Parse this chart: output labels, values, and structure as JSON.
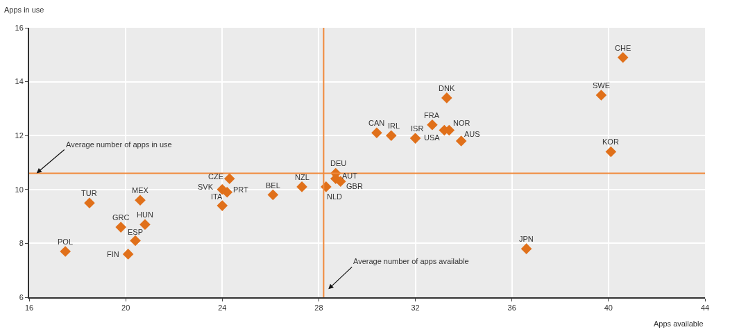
{
  "chart_data": {
    "type": "scatter",
    "xlabel": "Apps available",
    "ylabel": "Apps in use",
    "x": [
      17.5,
      18.5,
      19.8,
      20.6,
      20.8,
      20.4,
      20.1,
      24.3,
      24.0,
      24.2,
      24.0,
      26.1,
      27.3,
      28.3,
      28.7,
      28.7,
      28.9,
      30.4,
      31.0,
      32.0,
      32.7,
      33.2,
      33.4,
      33.9,
      33.3,
      39.7,
      40.6,
      40.1,
      36.6
    ],
    "series": [
      {
        "color": "#e0701a",
        "values": [
          7.7,
          9.5,
          8.6,
          9.6,
          8.7,
          8.1,
          7.6,
          10.4,
          10.0,
          9.9,
          9.4,
          9.8,
          10.1,
          10.1,
          10.6,
          10.4,
          10.3,
          12.1,
          12.0,
          11.9,
          12.4,
          12.2,
          12.2,
          11.8,
          13.4,
          13.5,
          14.9,
          11.4,
          7.8
        ]
      }
    ],
    "annotations": [
      {
        "text": "POL",
        "x": 17.5,
        "y": 7.7
      },
      {
        "text": "TUR",
        "x": 18.5,
        "y": 9.5
      },
      {
        "text": "GRC",
        "x": 19.8,
        "y": 8.6
      },
      {
        "text": "MEX",
        "x": 20.6,
        "y": 9.6
      },
      {
        "text": "HUN",
        "x": 20.8,
        "y": 8.7
      },
      {
        "text": "ESP",
        "x": 20.4,
        "y": 8.1
      },
      {
        "text": "FIN",
        "x": 20.1,
        "y": 7.6
      },
      {
        "text": "CZE",
        "x": 24.3,
        "y": 10.4
      },
      {
        "text": "SVK",
        "x": 24.0,
        "y": 10.0
      },
      {
        "text": "PRT",
        "x": 24.2,
        "y": 9.9
      },
      {
        "text": "ITA",
        "x": 24.0,
        "y": 9.4
      },
      {
        "text": "BEL",
        "x": 26.1,
        "y": 9.8
      },
      {
        "text": "NZL",
        "x": 27.3,
        "y": 10.1
      },
      {
        "text": "NLD",
        "x": 28.3,
        "y": 10.1
      },
      {
        "text": "DEU",
        "x": 28.7,
        "y": 10.6
      },
      {
        "text": "AUT",
        "x": 28.7,
        "y": 10.4
      },
      {
        "text": "GBR",
        "x": 28.9,
        "y": 10.3
      },
      {
        "text": "CAN",
        "x": 30.4,
        "y": 12.1
      },
      {
        "text": "IRL",
        "x": 31.0,
        "y": 12.0
      },
      {
        "text": "ISR",
        "x": 32.0,
        "y": 11.9
      },
      {
        "text": "FRA",
        "x": 32.7,
        "y": 12.4
      },
      {
        "text": "USA",
        "x": 33.2,
        "y": 12.2
      },
      {
        "text": "NOR",
        "x": 33.4,
        "y": 12.2
      },
      {
        "text": "AUS",
        "x": 33.9,
        "y": 11.8
      },
      {
        "text": "DNK",
        "x": 33.3,
        "y": 13.4
      },
      {
        "text": "SWE",
        "x": 39.7,
        "y": 13.5
      },
      {
        "text": "CHE",
        "x": 40.6,
        "y": 14.9
      },
      {
        "text": "KOR",
        "x": 40.1,
        "y": 11.4
      },
      {
        "text": "JPN",
        "x": 36.6,
        "y": 7.8
      }
    ],
    "ref_lines": [
      {
        "axis": "y",
        "value": 10.6,
        "label": "Average number of apps in use",
        "color": "#f08a3c"
      },
      {
        "axis": "x",
        "value": 28.2,
        "label": "Average number of apps available",
        "color": "#f08a3c"
      }
    ],
    "xlim": [
      16,
      44
    ],
    "xticks": [
      16,
      20,
      24,
      28,
      32,
      36,
      40,
      44
    ],
    "ylim": [
      6,
      16
    ],
    "yticks": [
      6,
      8,
      10,
      12,
      14,
      16
    ],
    "grid": true,
    "marker": "diamond"
  }
}
